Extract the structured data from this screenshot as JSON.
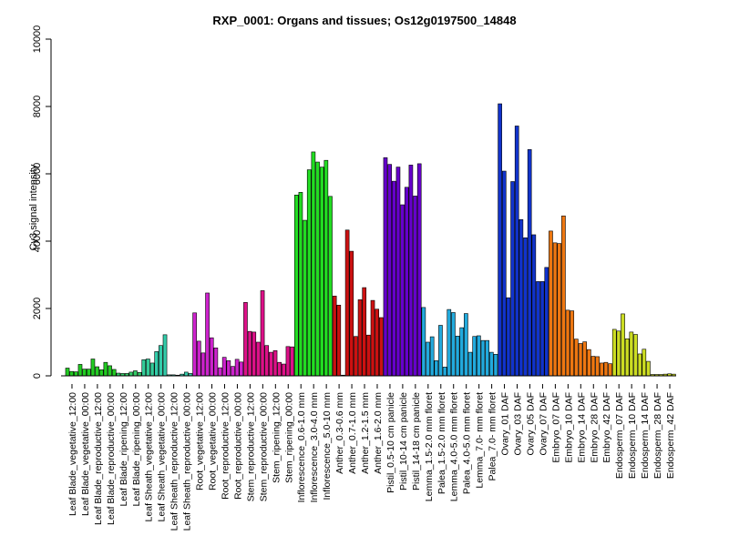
{
  "chart_data": {
    "type": "bar",
    "title": "RXP_0001: Organs and tissues; Os12g0197500_14848",
    "ylabel": "Cy3 signal intensity",
    "xlabel": "",
    "ylim": [
      0,
      10000
    ],
    "yticks": [
      0,
      2000,
      4000,
      6000,
      8000,
      10000
    ],
    "grid": false,
    "legend": "none",
    "groups": [
      {
        "label": "Leaf Blade_vegetative_12:00",
        "color": "#22cc22",
        "values": [
          230,
          130,
          120
        ]
      },
      {
        "label": "Leaf Blade_vegetative_00:00",
        "color": "#22cc22",
        "values": [
          340,
          200,
          200
        ]
      },
      {
        "label": "Leaf Blade_reproductive_12:00",
        "color": "#22cc22",
        "values": [
          500,
          270,
          180
        ]
      },
      {
        "label": "Leaf Blade_reproductive_00:00",
        "color": "#22cc22",
        "values": [
          400,
          300,
          190
        ]
      },
      {
        "label": "Leaf Blade_ripening_12:00",
        "color": "#33cc66",
        "values": [
          80,
          70,
          70
        ]
      },
      {
        "label": "Leaf Blade_ripening_00:00",
        "color": "#33cc66",
        "values": [
          110,
          150,
          100
        ]
      },
      {
        "label": "Leaf Sheath_vegetative_12:00",
        "color": "#33cc99",
        "values": [
          480,
          500,
          380
        ]
      },
      {
        "label": "Leaf Sheath_vegetative_00:00",
        "color": "#33ccaa",
        "values": [
          720,
          900,
          1220
        ]
      },
      {
        "label": "Leaf Sheath_reproductive_12:00",
        "color": "#33ccaa",
        "values": [
          30,
          30,
          20
        ]
      },
      {
        "label": "Leaf Sheath_reproductive_00:00",
        "color": "#33ccaa",
        "values": [
          50,
          110,
          70
        ]
      },
      {
        "label": "Root_vegetative_12:00",
        "color": "#cc22cc",
        "values": [
          1870,
          1030,
          680
        ]
      },
      {
        "label": "Root_vegetative_00:00",
        "color": "#cc22cc",
        "values": [
          2460,
          1130,
          830
        ]
      },
      {
        "label": "Root_reproductive_12:00",
        "color": "#cc22cc",
        "values": [
          240,
          550,
          450
        ]
      },
      {
        "label": "Root_reproductive_00:00",
        "color": "#cc22cc",
        "values": [
          280,
          490,
          410
        ]
      },
      {
        "label": "Stem_reproductive_12:00",
        "color": "#dd1188",
        "values": [
          2180,
          1320,
          1300
        ]
      },
      {
        "label": "Stem_reproductive_00:00",
        "color": "#dd1188",
        "values": [
          1000,
          2530,
          900
        ]
      },
      {
        "label": "Stem_ripening_12:00",
        "color": "#dd1188",
        "values": [
          700,
          750,
          400
        ]
      },
      {
        "label": "Stem_ripening_00:00",
        "color": "#dd1188",
        "values": [
          350,
          870,
          860
        ]
      },
      {
        "label": "Inflorescence_0.6-1.0 mm",
        "color": "#22dd22",
        "values": [
          5370,
          5450,
          4620
        ]
      },
      {
        "label": "Inflorescence_3.0-4.0 mm",
        "color": "#22dd22",
        "values": [
          6120,
          6650,
          6350
        ]
      },
      {
        "label": "Inflorescence_5.0-10 mm",
        "color": "#22dd22",
        "values": [
          6200,
          6400,
          5330
        ]
      },
      {
        "label": "Anther_0.3-0.6 mm",
        "color": "#cc1111",
        "values": [
          2370,
          2100,
          20
        ]
      },
      {
        "label": "Anther_0.7-1.0 mm",
        "color": "#cc1111",
        "values": [
          4330,
          3700,
          1170
        ]
      },
      {
        "label": "Anther_1.2-1.5 mm",
        "color": "#cc1111",
        "values": [
          2260,
          2620,
          1210
        ]
      },
      {
        "label": "Anther_1.6-2.0 mm",
        "color": "#cc1111",
        "values": [
          2240,
          1980,
          1730
        ]
      },
      {
        "label": "Pistil_0.5-10 cm panicle",
        "color": "#6600cc",
        "values": [
          6480,
          6280,
          5780
        ]
      },
      {
        "label": "Pistil_10-14 cm panicle",
        "color": "#6600cc",
        "values": [
          6200,
          5080,
          5600
        ]
      },
      {
        "label": "Pistil_14-18 cm panicle",
        "color": "#6600cc",
        "values": [
          6260,
          5340,
          6300
        ]
      },
      {
        "label": "Lemma_1.5-2.0 mm floret",
        "color": "#22aadd",
        "values": [
          2030,
          1000,
          1160
        ]
      },
      {
        "label": "Palea_1.5-2.0 mm floret",
        "color": "#22aadd",
        "values": [
          450,
          1500,
          260
        ]
      },
      {
        "label": "Lemma_4.0-5.0 mm floret",
        "color": "#22aadd",
        "values": [
          1970,
          1880,
          1180
        ]
      },
      {
        "label": "Palea_4.0-5.0 mm floret",
        "color": "#22aadd",
        "values": [
          1430,
          1850,
          700
        ]
      },
      {
        "label": "Lemma_7.0- mm floret",
        "color": "#22aadd",
        "values": [
          1170,
          1190,
          1050
        ]
      },
      {
        "label": "Palea_7.0- mm floret",
        "color": "#22aadd",
        "values": [
          1050,
          700,
          640
        ]
      },
      {
        "label": "Ovary_01 DAF",
        "color": "#1133cc",
        "values": [
          8080,
          6080,
          2320
        ]
      },
      {
        "label": "Ovary_03 DAF",
        "color": "#1133cc",
        "values": [
          5770,
          7420,
          4640
        ]
      },
      {
        "label": "Ovary_05 DAF",
        "color": "#1133cc",
        "values": [
          4100,
          6720,
          4190
        ]
      },
      {
        "label": "Ovary_07 DAF",
        "color": "#1133cc",
        "values": [
          2800,
          2800,
          3220
        ]
      },
      {
        "label": "Embryo_07 DAF",
        "color": "#ee7711",
        "values": [
          4300,
          3950,
          3930
        ]
      },
      {
        "label": "Embryo_10 DAF",
        "color": "#ee7711",
        "values": [
          4750,
          1950,
          1930
        ]
      },
      {
        "label": "Embryo_14 DAF",
        "color": "#ee7711",
        "values": [
          1090,
          960,
          1010
        ]
      },
      {
        "label": "Embryo_28 DAF",
        "color": "#ee7711",
        "values": [
          780,
          580,
          570
        ]
      },
      {
        "label": "Embryo_42 DAF",
        "color": "#ee7711",
        "values": [
          380,
          400,
          360
        ]
      },
      {
        "label": "Endosperm_07 DAF",
        "color": "#ccdd22",
        "values": [
          1380,
          1330,
          1840
        ]
      },
      {
        "label": "Endosperm_10 DAF",
        "color": "#ccdd22",
        "values": [
          1100,
          1300,
          1230
        ]
      },
      {
        "label": "Endosperm_14 DAF",
        "color": "#ccdd22",
        "values": [
          650,
          790,
          430
        ]
      },
      {
        "label": "Endosperm_28 DAF",
        "color": "#ccdd22",
        "values": [
          40,
          40,
          40
        ]
      },
      {
        "label": "Endosperm_42 DAF",
        "color": "#ccdd22",
        "values": [
          50,
          60,
          50
        ]
      }
    ]
  }
}
